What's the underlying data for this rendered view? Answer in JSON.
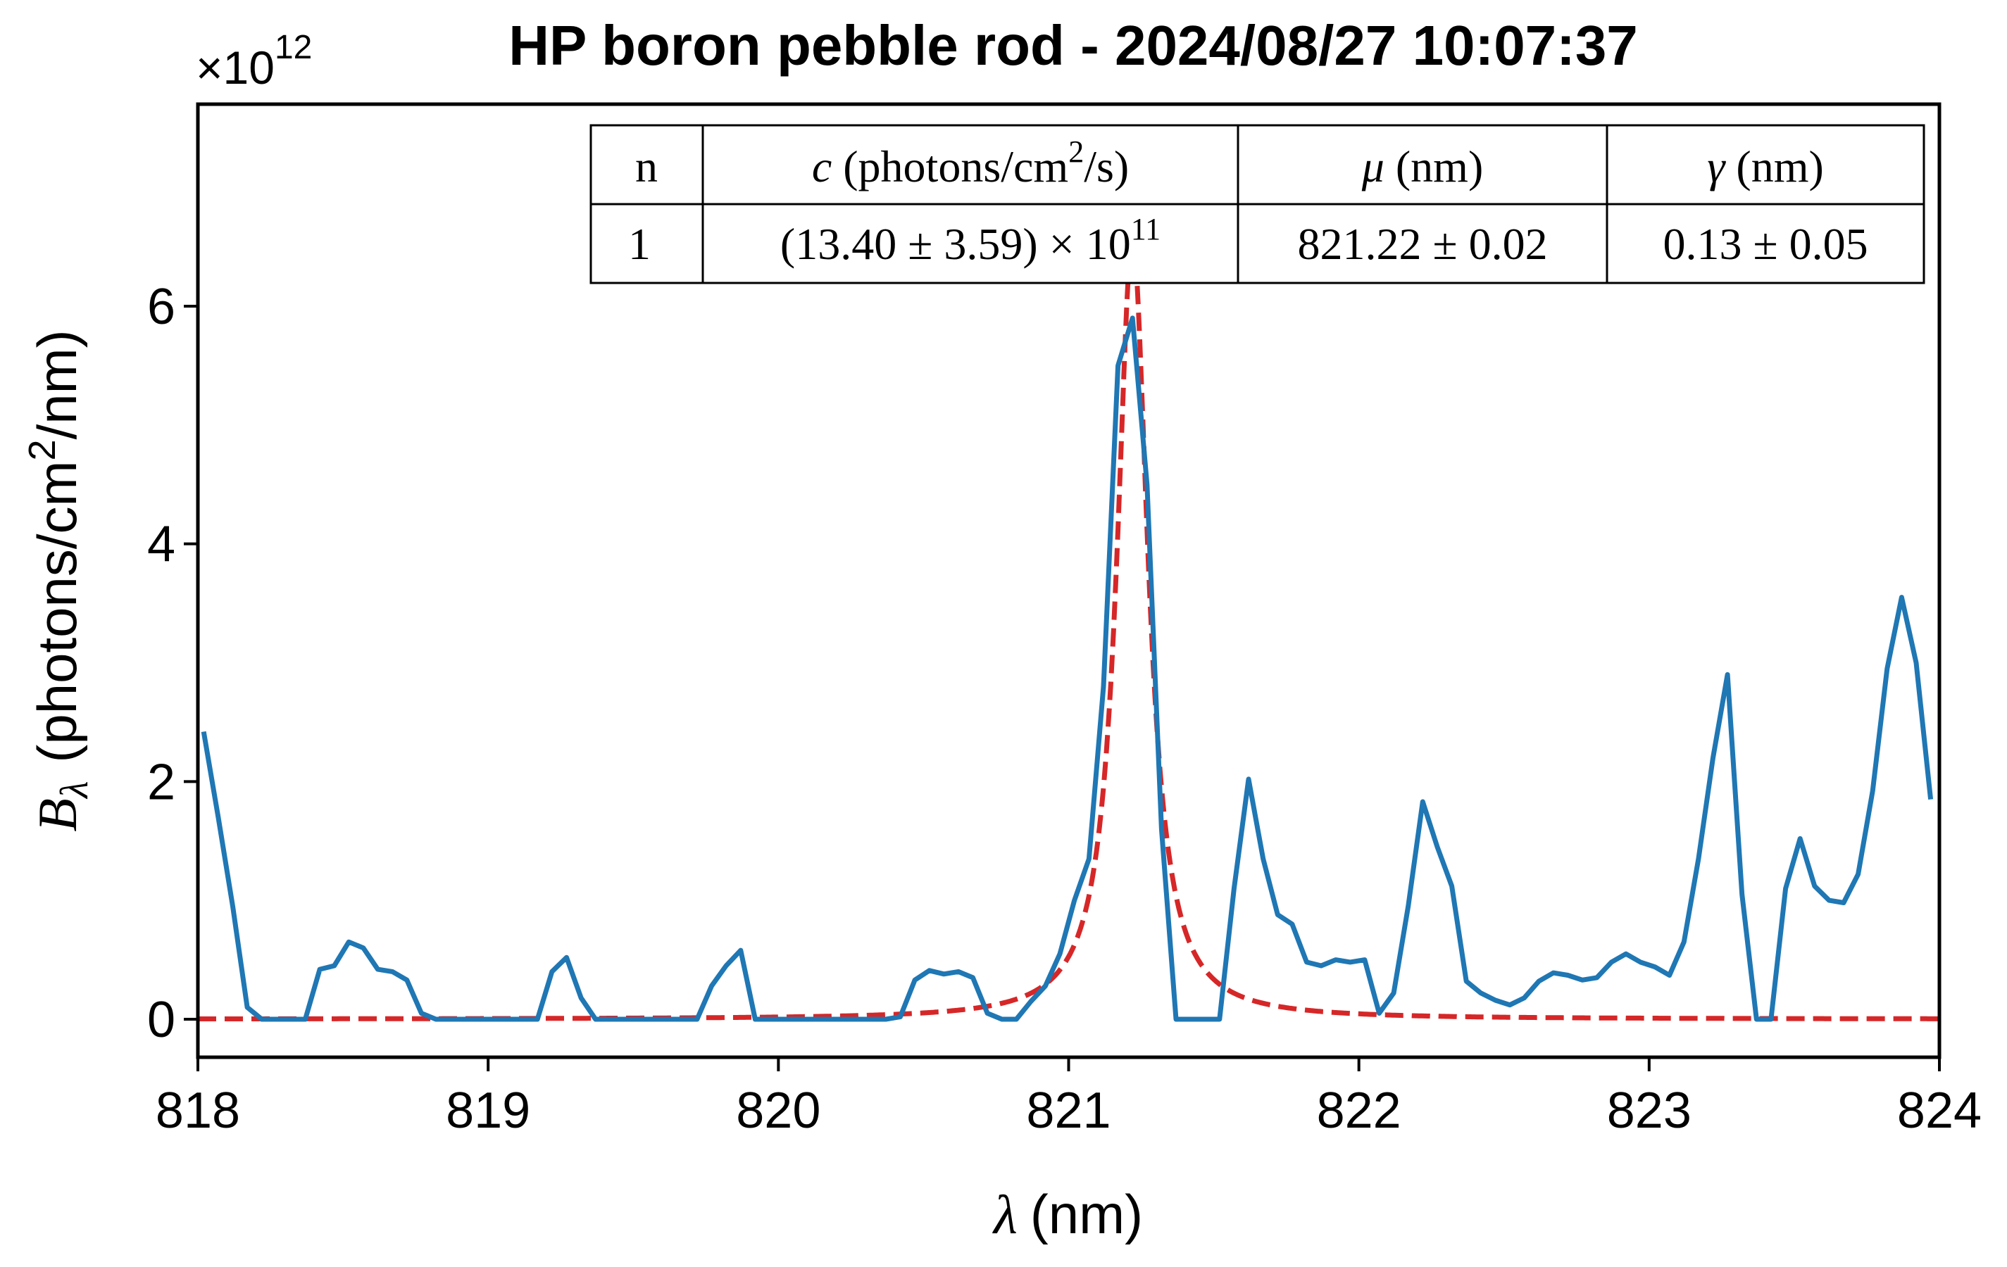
{
  "chart_data": {
    "type": "line",
    "title": "HP boron pebble rod - 2024/08/27 10:07:37",
    "offset_text": {
      "base": "×10",
      "exponent": "12"
    },
    "xlabel": {
      "symbol": "λ",
      "unit": "(nm)"
    },
    "ylabel": {
      "symbol": "B",
      "subscript": "λ",
      "unit_pre": "(photons/cm",
      "unit_sup": "2",
      "unit_post": "/nm)"
    },
    "xlim": [
      818,
      824
    ],
    "ylim": [
      -0.32,
      7.7
    ],
    "y_scale": 1000000000000.0,
    "xticks": [
      818,
      819,
      820,
      821,
      822,
      823,
      824
    ],
    "yticks": [
      0,
      2,
      4,
      6
    ],
    "grid": false,
    "series": [
      {
        "style": "solid",
        "color": "#1f77b4",
        "x": [
          818.02,
          818.07,
          818.12,
          818.17,
          818.22,
          818.27,
          818.32,
          818.37,
          818.42,
          818.47,
          818.52,
          818.57,
          818.62,
          818.67,
          818.72,
          818.77,
          818.82,
          818.87,
          818.92,
          818.97,
          819.02,
          819.07,
          819.12,
          819.17,
          819.22,
          819.27,
          819.32,
          819.37,
          819.42,
          819.47,
          819.52,
          819.57,
          819.62,
          819.67,
          819.72,
          819.77,
          819.82,
          819.87,
          819.92,
          819.97,
          820.02,
          820.07,
          820.12,
          820.17,
          820.22,
          820.27,
          820.32,
          820.37,
          820.42,
          820.47,
          820.52,
          820.57,
          820.62,
          820.67,
          820.72,
          820.77,
          820.82,
          820.87,
          820.92,
          820.97,
          821.02,
          821.07,
          821.12,
          821.17,
          821.22,
          821.27,
          821.32,
          821.37,
          821.42,
          821.47,
          821.52,
          821.57,
          821.62,
          821.67,
          821.72,
          821.77,
          821.82,
          821.87,
          821.92,
          821.97,
          822.02,
          822.07,
          822.12,
          822.17,
          822.22,
          822.27,
          822.32,
          822.37,
          822.42,
          822.47,
          822.52,
          822.57,
          822.62,
          822.67,
          822.72,
          822.77,
          822.82,
          822.87,
          822.92,
          822.97,
          823.02,
          823.07,
          823.12,
          823.17,
          823.22,
          823.27,
          823.32,
          823.37,
          823.42,
          823.47,
          823.52,
          823.57,
          823.62,
          823.67,
          823.72,
          823.77,
          823.82,
          823.87,
          823.92,
          823.97
        ],
        "y": [
          2.42,
          1.7,
          0.95,
          0.1,
          0,
          0,
          0,
          0,
          0.42,
          0.45,
          0.65,
          0.6,
          0.42,
          0.4,
          0.33,
          0.05,
          0,
          0,
          0,
          0,
          0,
          0,
          0,
          0,
          0.4,
          0.52,
          0.18,
          0,
          0,
          0,
          0,
          0,
          0,
          0,
          0,
          0.28,
          0.45,
          0.58,
          0,
          0,
          0,
          0,
          0,
          0,
          0,
          0,
          0,
          0,
          0.02,
          0.33,
          0.41,
          0.38,
          0.4,
          0.35,
          0.05,
          0,
          0,
          0.15,
          0.28,
          0.55,
          1.0,
          1.35,
          2.8,
          5.5,
          5.9,
          4.5,
          1.6,
          0,
          0,
          0,
          0,
          1.1,
          2.02,
          1.35,
          0.88,
          0.8,
          0.48,
          0.45,
          0.5,
          0.48,
          0.5,
          0.05,
          0.22,
          0.95,
          1.83,
          1.45,
          1.12,
          0.32,
          0.22,
          0.16,
          0.12,
          0.18,
          0.32,
          0.39,
          0.37,
          0.33,
          0.35,
          0.48,
          0.55,
          0.48,
          0.44,
          0.37,
          0.65,
          1.35,
          2.2,
          2.9,
          1.05,
          0,
          0,
          1.1,
          1.52,
          1.12,
          1.0,
          0.98,
          1.22,
          1.92,
          2.95,
          3.55,
          3.0,
          1.85
        ]
      },
      {
        "style": "dashed",
        "color": "#d62728",
        "model": "lorentzian",
        "params": {
          "c": 1.34,
          "mu": 821.22,
          "gamma": 0.13
        }
      }
    ],
    "table": {
      "headers": [
        {
          "italic": "",
          "text": "n"
        },
        {
          "italic": "c",
          "text": " (photons/cm",
          "sup": "2",
          "tail": "/s)"
        },
        {
          "italic": "μ",
          "text": " (nm)"
        },
        {
          "italic": "γ",
          "text": " (nm)"
        }
      ],
      "row": [
        "1",
        "(13.40 ± 3.59) × 10",
        "821.22 ± 0.02",
        "0.13 ± 0.05"
      ],
      "row_sup": "11"
    }
  }
}
